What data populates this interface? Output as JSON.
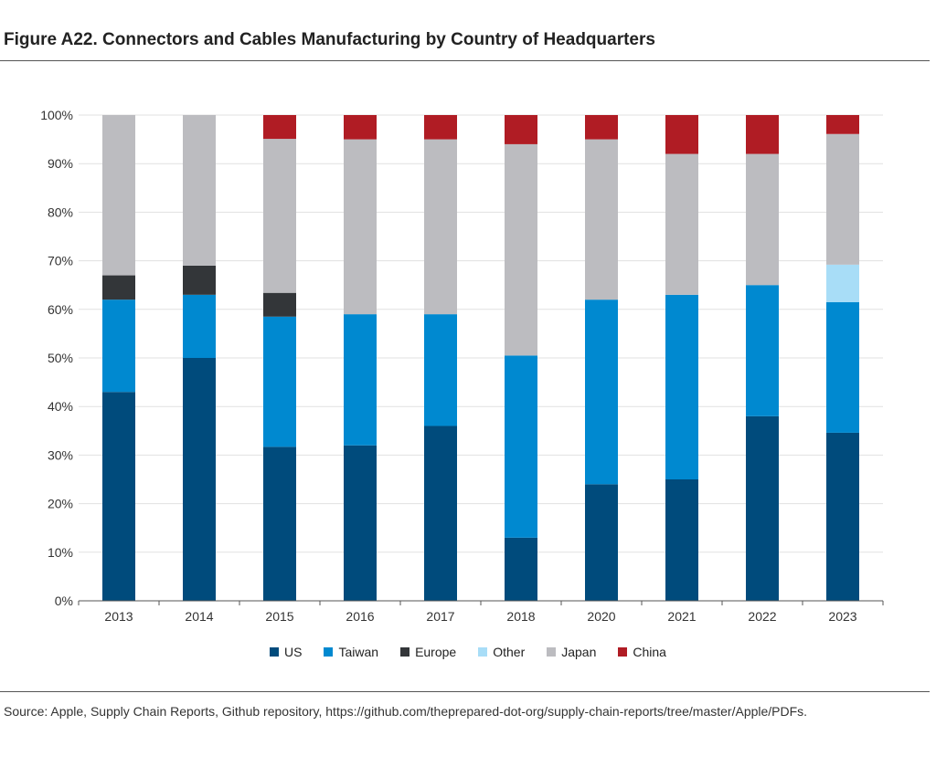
{
  "title": "Figure A22. Connectors and Cables Manufacturing by Country of Headquarters",
  "source": "Source: Apple, Supply Chain Reports, Github repository, https://github.com/theprepared-dot-org/supply-chain-reports/tree/master/Apple/PDFs.",
  "chart_data": {
    "type": "bar",
    "stacked": true,
    "categories": [
      "2013",
      "2014",
      "2015",
      "2016",
      "2017",
      "2018",
      "2020",
      "2021",
      "2022",
      "2023"
    ],
    "y_ticks": [
      "0%",
      "10%",
      "20%",
      "30%",
      "40%",
      "50%",
      "60%",
      "70%",
      "80%",
      "90%",
      "100%"
    ],
    "ylim": [
      0,
      100
    ],
    "grid": true,
    "legend_position": "bottom",
    "series": [
      {
        "name": "US",
        "color": "#004b7c",
        "values": [
          43,
          50,
          31.7,
          32,
          36,
          13,
          24,
          25,
          38,
          34.6
        ]
      },
      {
        "name": "Taiwan",
        "color": "#0089d0",
        "values": [
          19,
          13,
          26.8,
          27,
          23,
          37.5,
          38,
          38,
          27,
          26.9
        ]
      },
      {
        "name": "Europe",
        "color": "#333639",
        "values": [
          5,
          6,
          4.9,
          0,
          0,
          0,
          0,
          0,
          0,
          0
        ]
      },
      {
        "name": "Other",
        "color": "#a8ddf7",
        "values": [
          0,
          0,
          0,
          0,
          0,
          0,
          0,
          0,
          0,
          7.7
        ]
      },
      {
        "name": "Japan",
        "color": "#bcbcc0",
        "values": [
          33,
          31,
          31.7,
          36,
          36,
          43.5,
          33,
          29,
          27,
          26.9
        ]
      },
      {
        "name": "China",
        "color": "#b01c24",
        "values": [
          0,
          0,
          4.9,
          5,
          5,
          6,
          5,
          8,
          8,
          3.9
        ]
      }
    ]
  }
}
